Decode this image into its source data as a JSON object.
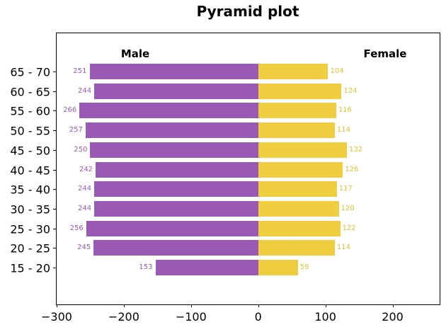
{
  "title": "Pyramid plot",
  "chart_data": {
    "type": "bar",
    "subtype": "horizontal-diverging-pyramid",
    "title": "Pyramid plot",
    "categories_top_to_bottom": [
      "65 - 70",
      "60 - 65",
      "55 - 60",
      "50 - 55",
      "45 - 50",
      "40 - 45",
      "35 - 40",
      "30 - 35",
      "25 - 30",
      "20 - 25",
      "15 - 20"
    ],
    "series": [
      {
        "name": "Male",
        "side": "left",
        "color": "#9b59b6",
        "label_color": "#9b59b6",
        "values": [
          251,
          244,
          266,
          257,
          250,
          242,
          244,
          244,
          256,
          245,
          153
        ]
      },
      {
        "name": "Female",
        "side": "right",
        "color": "#f0cd3e",
        "label_color": "#e3bf2d",
        "values": [
          104,
          124,
          116,
          114,
          132,
          126,
          117,
          120,
          122,
          114,
          59
        ]
      }
    ],
    "xlim": [
      -300,
      270
    ],
    "xticks": [
      -300,
      -200,
      -100,
      0,
      100,
      200
    ],
    "xtick_labels": [
      "−300",
      "−200",
      "−100",
      "0",
      "100",
      "200"
    ],
    "ylabel": "",
    "xlabel": "",
    "grid": false,
    "legend_position": "in-plot headers",
    "note": "male bars drawn to the left of 0 with positive value labels, female bars to the right"
  }
}
